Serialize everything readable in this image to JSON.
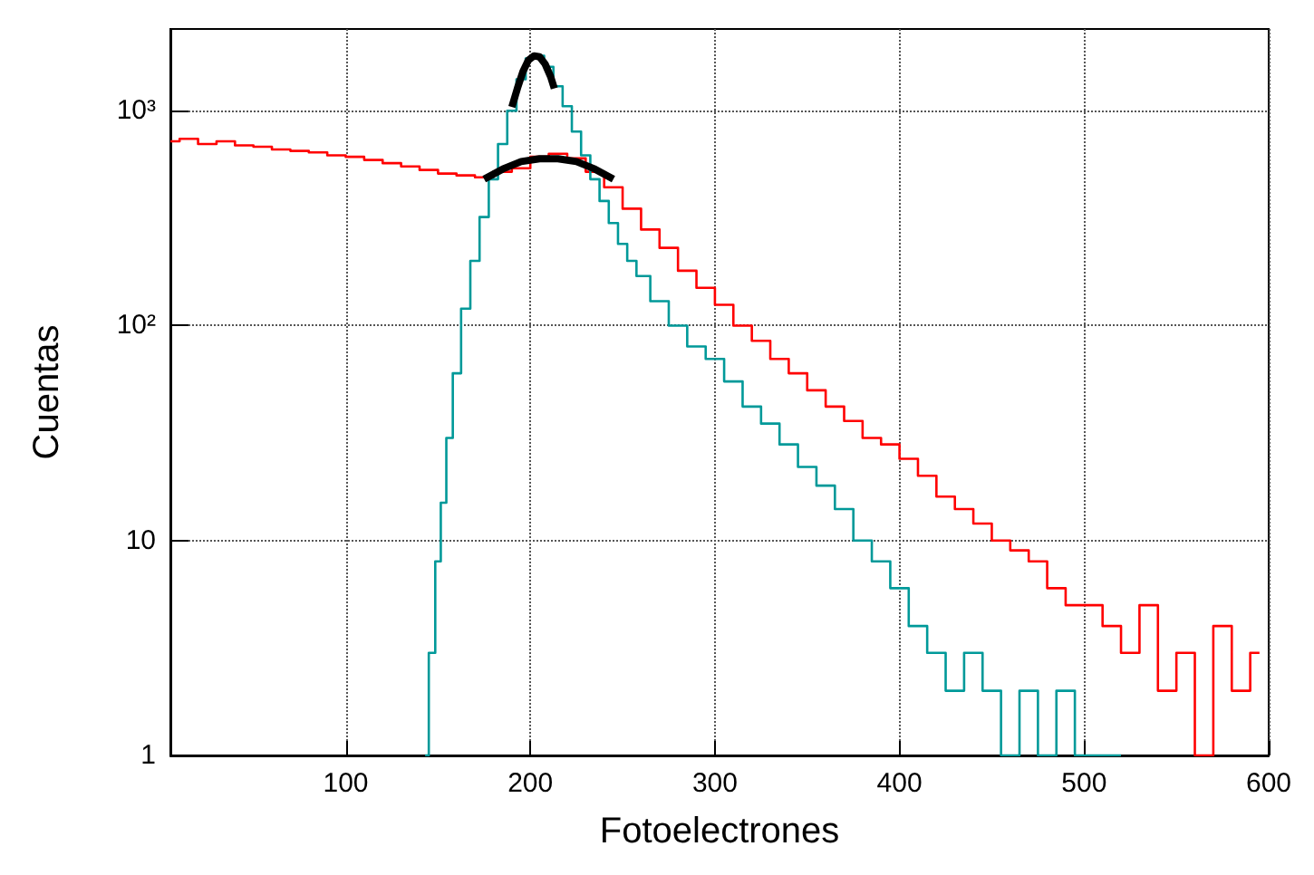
{
  "chart_data": {
    "type": "step",
    "xlabel": "Fotoelectrones",
    "ylabel": "Cuentas",
    "log": "y",
    "grid": true,
    "marker": "none",
    "xlim": [
      5,
      600
    ],
    "ylim": [
      1,
      2400
    ],
    "xticks": [
      100,
      200,
      300,
      400,
      500,
      600
    ],
    "yticks": [
      1,
      10,
      {
        "value": 100,
        "label": "10²"
      },
      {
        "value": 1000,
        "label": "10³"
      }
    ],
    "series": [
      {
        "color": "#ff0000",
        "x": [
          5,
          15,
          25,
          35,
          45,
          55,
          65,
          75,
          85,
          95,
          105,
          115,
          125,
          135,
          145,
          155,
          165,
          175,
          185,
          195,
          205,
          215,
          225,
          235,
          245,
          255,
          265,
          275,
          285,
          295,
          305,
          315,
          325,
          335,
          345,
          355,
          365,
          375,
          385,
          395,
          405,
          415,
          425,
          435,
          445,
          455,
          465,
          475,
          485,
          495,
          505,
          515,
          525,
          535,
          545,
          555,
          565,
          575,
          585,
          595
        ],
        "values": [
          720,
          740,
          700,
          720,
          690,
          680,
          660,
          650,
          640,
          620,
          610,
          590,
          570,
          550,
          530,
          510,
          500,
          490,
          520,
          540,
          610,
          630,
          600,
          520,
          440,
          350,
          280,
          230,
          180,
          150,
          125,
          100,
          85,
          70,
          60,
          50,
          42,
          36,
          30,
          28,
          24,
          20,
          16,
          14,
          12,
          10,
          9,
          8,
          6,
          5,
          5,
          4,
          3,
          5,
          2,
          3,
          1,
          4,
          2,
          3
        ]
      },
      {
        "color": "#009999",
        "x": [
          143,
          147,
          150,
          153,
          156,
          160,
          165,
          170,
          175,
          180,
          185,
          190,
          195,
          200,
          205,
          210,
          215,
          220,
          225,
          230,
          235,
          240,
          245,
          250,
          255,
          260,
          270,
          280,
          290,
          300,
          310,
          320,
          330,
          340,
          350,
          360,
          370,
          380,
          390,
          400,
          410,
          420,
          430,
          440,
          450,
          460,
          470,
          480,
          490,
          500,
          510,
          520
        ],
        "values": [
          1,
          3,
          8,
          15,
          30,
          60,
          120,
          200,
          320,
          480,
          700,
          1000,
          1400,
          1750,
          1800,
          1600,
          1300,
          1050,
          800,
          620,
          480,
          380,
          300,
          240,
          200,
          170,
          130,
          100,
          80,
          70,
          55,
          42,
          35,
          28,
          22,
          18,
          14,
          10,
          8,
          6,
          4,
          3,
          2,
          3,
          2,
          1,
          2,
          1,
          2,
          1,
          1,
          1
        ]
      },
      {
        "type": "line",
        "color": "#000000",
        "x": [
          190,
          193,
          196,
          199,
          202,
          205,
          208,
          211,
          213
        ],
        "values": [
          1040,
          1270,
          1520,
          1720,
          1800,
          1780,
          1650,
          1440,
          1270
        ]
      },
      {
        "type": "line",
        "color": "#000000",
        "x": [
          175,
          185,
          195,
          205,
          215,
          225,
          235,
          245
        ],
        "values": [
          480,
          535,
          580,
          598,
          598,
          580,
          535,
          480
        ]
      }
    ]
  }
}
